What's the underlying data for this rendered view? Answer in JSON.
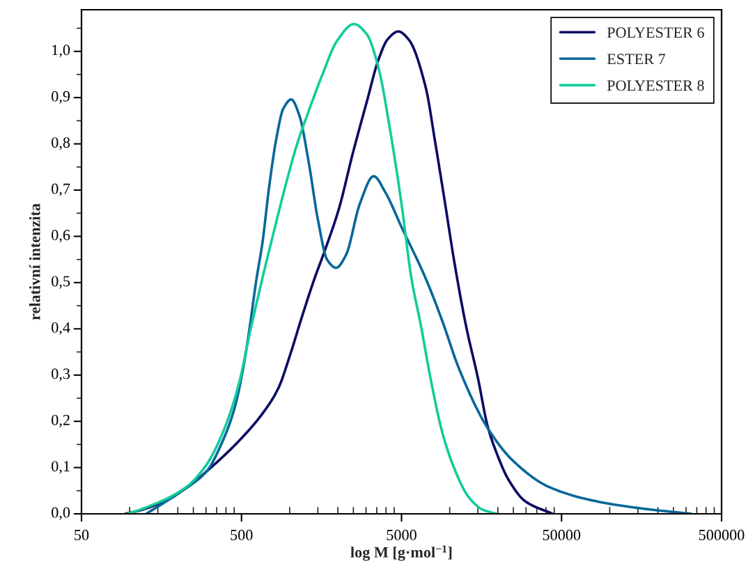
{
  "chart_data": {
    "type": "line",
    "xlabel": "log M [g·mol$^{−1}$]",
    "ylabel": "relativní intenzita",
    "log": "x",
    "xlim": [
      50,
      500000
    ],
    "xticks": [
      50,
      500,
      5000,
      50000,
      500000
    ],
    "ylim": [
      0,
      1.09
    ],
    "yticks": [
      {
        "value": 0,
        "label": "0,0"
      },
      {
        "value": 0.1,
        "label": "0,1"
      },
      {
        "value": 0.2,
        "label": "0,2"
      },
      {
        "value": 0.3,
        "label": "0,3"
      },
      {
        "value": 0.4,
        "label": "0,4"
      },
      {
        "value": 0.5,
        "label": "0,5"
      },
      {
        "value": 0.6,
        "label": "0,6"
      },
      {
        "value": 0.7,
        "label": "0,7"
      },
      {
        "value": 0.8,
        "label": "0,8"
      },
      {
        "value": 0.9,
        "label": "0,9"
      },
      {
        "value": 1.0,
        "label": "1,0"
      }
    ],
    "grid": false,
    "legend": "top right",
    "marker": "none",
    "line_style": "solid",
    "series": [
      {
        "name": "POLYESTER 6",
        "color": "#0b0b64",
        "x": [
          94,
          123,
          224,
          303,
          483,
          697,
          853,
          1007,
          1188,
          1430,
          1661,
          2032,
          2482,
          3033,
          3580,
          4093,
          4776,
          5533,
          7080,
          8110,
          9310,
          10660,
          12640,
          15000,
          17220,
          19720,
          23380,
          29700,
          43950
        ],
        "values": [
          0,
          0.01,
          0.055,
          0.092,
          0.158,
          0.223,
          0.273,
          0.344,
          0.424,
          0.509,
          0.57,
          0.66,
          0.78,
          0.891,
          0.981,
          1.026,
          1.043,
          1.026,
          0.922,
          0.804,
          0.676,
          0.547,
          0.407,
          0.294,
          0.191,
          0.13,
          0.073,
          0.027,
          0
        ]
      },
      {
        "name": "ESTER 7",
        "color": "#05679a",
        "x": [
          127,
          224,
          303,
          382,
          452,
          508,
          552,
          621,
          675,
          746,
          824,
          912,
          1023,
          1150,
          1315,
          1503,
          1718,
          1950,
          2244,
          2742,
          3350,
          3963,
          5000,
          7080,
          8990,
          11430,
          17220,
          25000,
          41780,
          82600,
          163600,
          323600
        ],
        "values": [
          0,
          0.055,
          0.092,
          0.158,
          0.228,
          0.308,
          0.384,
          0.509,
          0.585,
          0.71,
          0.81,
          0.876,
          0.896,
          0.861,
          0.76,
          0.635,
          0.549,
          0.532,
          0.559,
          0.67,
          0.73,
          0.695,
          0.62,
          0.509,
          0.417,
          0.314,
          0.186,
          0.114,
          0.058,
          0.027,
          0.011,
          0
        ]
      },
      {
        "name": "POLYESTER 8",
        "color": "#12cc9a",
        "x": [
          97,
          123,
          224,
          303,
          395,
          483,
          570,
          675,
          796,
          942,
          1114,
          1315,
          1607,
          1964,
          2522,
          3033,
          3580,
          4237,
          5000,
          5768,
          6608,
          7580,
          8990,
          10660,
          13090,
          16070,
          19720
        ],
        "values": [
          0,
          0.012,
          0.057,
          0.107,
          0.188,
          0.283,
          0.399,
          0.509,
          0.61,
          0.71,
          0.8,
          0.871,
          0.951,
          1.021,
          1.059,
          1.037,
          0.966,
          0.831,
          0.67,
          0.509,
          0.407,
          0.294,
          0.176,
          0.099,
          0.037,
          0.009,
          0
        ]
      }
    ]
  }
}
